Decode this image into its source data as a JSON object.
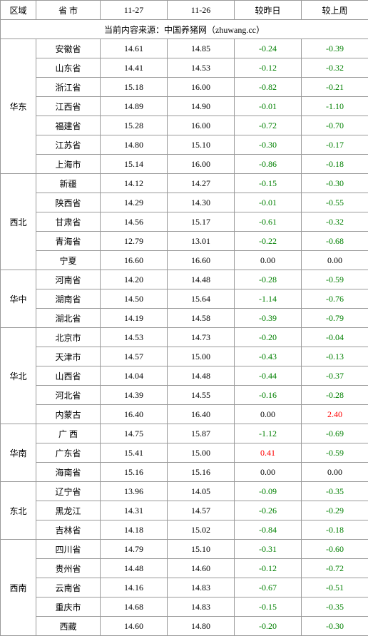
{
  "header": {
    "region": "区域",
    "province": "省 市",
    "date1": "11-27",
    "date2": "11-26",
    "diff_day": "较昨日",
    "diff_week": "较上周"
  },
  "source_text": "当前内容来源：中国养猪网（zhuwang.cc）",
  "colors": {
    "neg": "#008000",
    "pos": "#ff0000",
    "border": "#999999",
    "bg": "#ffffff",
    "text": "#000000"
  },
  "regions": [
    {
      "name": "华东",
      "rows": [
        {
          "province": "安徽省",
          "d1": "14.61",
          "d2": "14.85",
          "dd": "-0.24",
          "dw": "-0.39"
        },
        {
          "province": "山东省",
          "d1": "14.41",
          "d2": "14.53",
          "dd": "-0.12",
          "dw": "-0.32"
        },
        {
          "province": "浙江省",
          "d1": "15.18",
          "d2": "16.00",
          "dd": "-0.82",
          "dw": "-0.21"
        },
        {
          "province": "江西省",
          "d1": "14.89",
          "d2": "14.90",
          "dd": "-0.01",
          "dw": "-1.10"
        },
        {
          "province": "福建省",
          "d1": "15.28",
          "d2": "16.00",
          "dd": "-0.72",
          "dw": "-0.70"
        },
        {
          "province": "江苏省",
          "d1": "14.80",
          "d2": "15.10",
          "dd": "-0.30",
          "dw": "-0.17"
        },
        {
          "province": "上海市",
          "d1": "15.14",
          "d2": "16.00",
          "dd": "-0.86",
          "dw": "-0.18"
        }
      ]
    },
    {
      "name": "西北",
      "rows": [
        {
          "province": "新疆",
          "d1": "14.12",
          "d2": "14.27",
          "dd": "-0.15",
          "dw": "-0.30"
        },
        {
          "province": "陕西省",
          "d1": "14.29",
          "d2": "14.30",
          "dd": "-0.01",
          "dw": "-0.55"
        },
        {
          "province": "甘肃省",
          "d1": "14.56",
          "d2": "15.17",
          "dd": "-0.61",
          "dw": "-0.32"
        },
        {
          "province": "青海省",
          "d1": "12.79",
          "d2": "13.01",
          "dd": "-0.22",
          "dw": "-0.68"
        },
        {
          "province": "宁夏",
          "d1": "16.60",
          "d2": "16.60",
          "dd": "0.00",
          "dw": "0.00"
        }
      ]
    },
    {
      "name": "华中",
      "rows": [
        {
          "province": "河南省",
          "d1": "14.20",
          "d2": "14.48",
          "dd": "-0.28",
          "dw": "-0.59"
        },
        {
          "province": "湖南省",
          "d1": "14.50",
          "d2": "15.64",
          "dd": "-1.14",
          "dw": "-0.76"
        },
        {
          "province": "湖北省",
          "d1": "14.19",
          "d2": "14.58",
          "dd": "-0.39",
          "dw": "-0.79"
        }
      ]
    },
    {
      "name": "华北",
      "rows": [
        {
          "province": "北京市",
          "d1": "14.53",
          "d2": "14.73",
          "dd": "-0.20",
          "dw": "-0.04"
        },
        {
          "province": "天津市",
          "d1": "14.57",
          "d2": "15.00",
          "dd": "-0.43",
          "dw": "-0.13"
        },
        {
          "province": "山西省",
          "d1": "14.04",
          "d2": "14.48",
          "dd": "-0.44",
          "dw": "-0.37"
        },
        {
          "province": "河北省",
          "d1": "14.39",
          "d2": "14.55",
          "dd": "-0.16",
          "dw": "-0.28"
        },
        {
          "province": "内蒙古",
          "d1": "16.40",
          "d2": "16.40",
          "dd": "0.00",
          "dw": "2.40"
        }
      ]
    },
    {
      "name": "华南",
      "rows": [
        {
          "province": "广 西",
          "d1": "14.75",
          "d2": "15.87",
          "dd": "-1.12",
          "dw": "-0.69"
        },
        {
          "province": "广东省",
          "d1": "15.41",
          "d2": "15.00",
          "dd": "0.41",
          "dw": "-0.59"
        },
        {
          "province": "海南省",
          "d1": "15.16",
          "d2": "15.16",
          "dd": "0.00",
          "dw": "0.00"
        }
      ]
    },
    {
      "name": "东北",
      "rows": [
        {
          "province": "辽宁省",
          "d1": "13.96",
          "d2": "14.05",
          "dd": "-0.09",
          "dw": "-0.35"
        },
        {
          "province": "黑龙江",
          "d1": "14.31",
          "d2": "14.57",
          "dd": "-0.26",
          "dw": "-0.29"
        },
        {
          "province": "吉林省",
          "d1": "14.18",
          "d2": "15.02",
          "dd": "-0.84",
          "dw": "-0.18"
        }
      ]
    },
    {
      "name": "西南",
      "rows": [
        {
          "province": "四川省",
          "d1": "14.79",
          "d2": "15.10",
          "dd": "-0.31",
          "dw": "-0.60"
        },
        {
          "province": "贵州省",
          "d1": "14.48",
          "d2": "14.60",
          "dd": "-0.12",
          "dw": "-0.72"
        },
        {
          "province": "云南省",
          "d1": "14.16",
          "d2": "14.83",
          "dd": "-0.67",
          "dw": "-0.51"
        },
        {
          "province": "重庆市",
          "d1": "14.68",
          "d2": "14.83",
          "dd": "-0.15",
          "dw": "-0.35"
        },
        {
          "province": "西藏",
          "d1": "14.60",
          "d2": "14.80",
          "dd": "-0.20",
          "dw": "-0.30"
        }
      ]
    }
  ]
}
